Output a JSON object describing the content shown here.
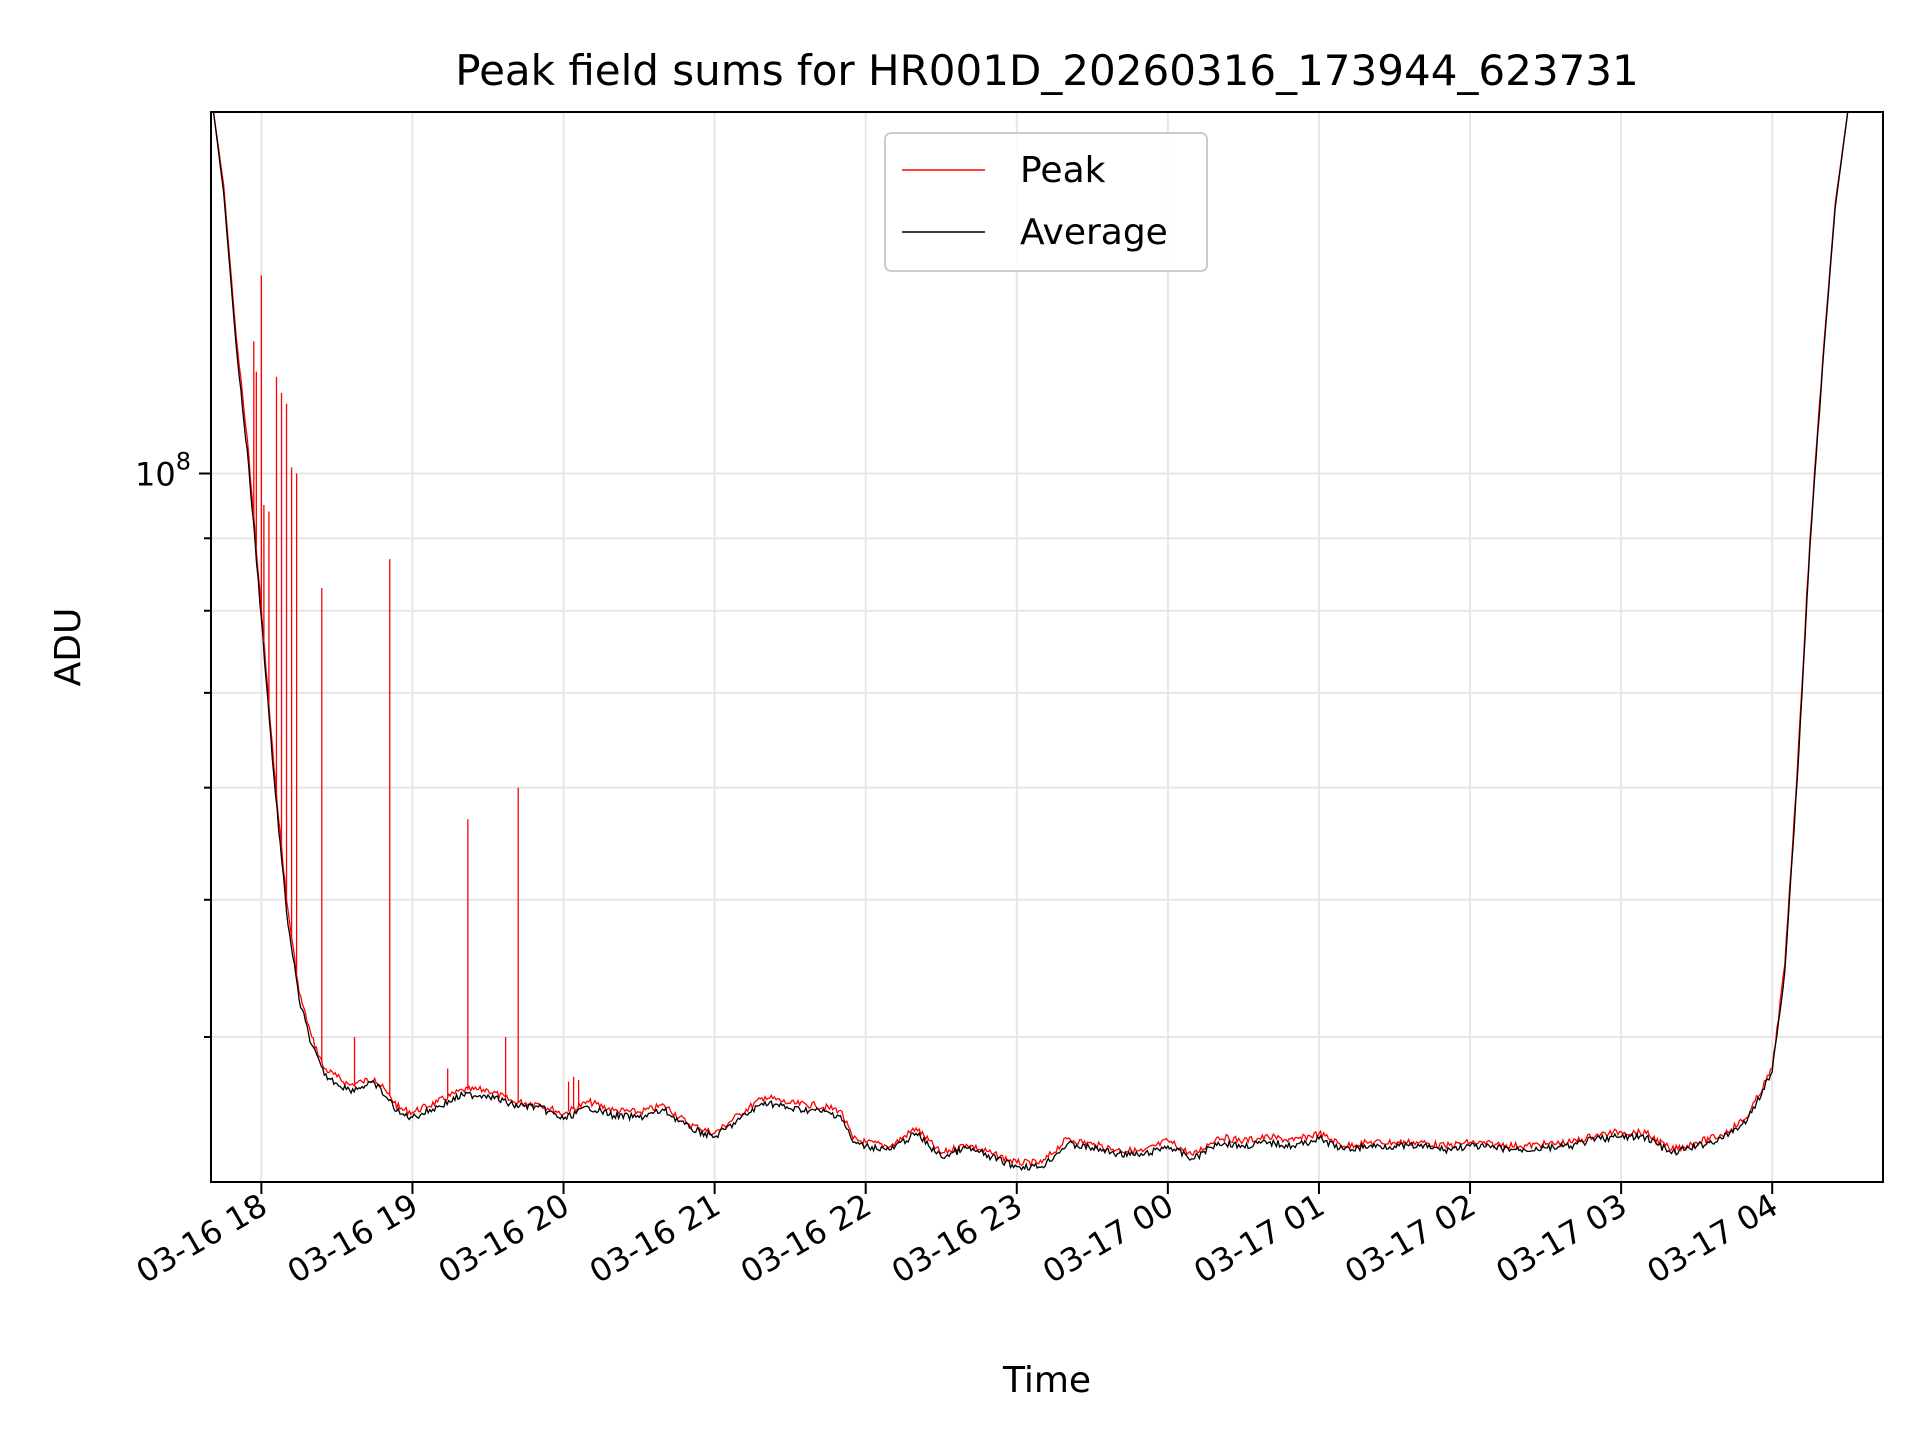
{
  "chart_data": {
    "type": "line",
    "title": "Peak field sums for HR001D_20260316_173944_623731",
    "xlabel": "Time",
    "ylabel": "ADU",
    "yscale": "log",
    "grid": true,
    "legend_position": "top-center",
    "x_tick_labels": [
      "03-16 18",
      "03-16 19",
      "03-16 20",
      "03-16 21",
      "03-16 22",
      "03-16 23",
      "03-17 00",
      "03-17 01",
      "03-17 02",
      "03-17 03",
      "03-17 04"
    ],
    "y_tick_labels": [
      {
        "base": "10",
        "exp": "8"
      }
    ],
    "xlim": [
      "2026-03-16 17:40",
      "2026-03-17 04:44"
    ],
    "ylim": [
      31600000,
      180000000
    ],
    "series": [
      {
        "name": "Peak",
        "color": "#ff0000",
        "x": [
          "2026-03-16 17:41",
          "2026-03-16 17:45",
          "2026-03-16 17:50",
          "2026-03-16 17:55",
          "2026-03-16 18:00",
          "2026-03-16 18:05",
          "2026-03-16 18:10",
          "2026-03-16 18:15",
          "2026-03-16 18:20",
          "2026-03-16 18:25",
          "2026-03-16 18:30",
          "2026-03-16 18:35",
          "2026-03-16 18:40",
          "2026-03-16 18:45",
          "2026-03-16 18:50",
          "2026-03-16 18:55",
          "2026-03-16 19:00",
          "2026-03-16 19:10",
          "2026-03-16 19:20",
          "2026-03-16 19:30",
          "2026-03-16 19:40",
          "2026-03-16 19:50",
          "2026-03-16 20:00",
          "2026-03-16 20:10",
          "2026-03-16 20:20",
          "2026-03-16 20:30",
          "2026-03-16 20:40",
          "2026-03-16 20:50",
          "2026-03-16 21:00",
          "2026-03-16 21:10",
          "2026-03-16 21:20",
          "2026-03-16 21:30",
          "2026-03-16 21:40",
          "2026-03-16 21:50",
          "2026-03-16 21:55",
          "2026-03-16 22:00",
          "2026-03-16 22:10",
          "2026-03-16 22:20",
          "2026-03-16 22:30",
          "2026-03-16 22:40",
          "2026-03-16 22:50",
          "2026-03-16 23:00",
          "2026-03-16 23:10",
          "2026-03-16 23:20",
          "2026-03-16 23:30",
          "2026-03-16 23:40",
          "2026-03-16 23:50",
          "2026-03-17 00:00",
          "2026-03-17 00:10",
          "2026-03-17 00:20",
          "2026-03-17 00:30",
          "2026-03-17 00:40",
          "2026-03-17 00:50",
          "2026-03-17 01:00",
          "2026-03-17 01:10",
          "2026-03-17 01:20",
          "2026-03-17 01:30",
          "2026-03-17 01:40",
          "2026-03-17 01:50",
          "2026-03-17 02:00",
          "2026-03-17 02:10",
          "2026-03-17 02:20",
          "2026-03-17 02:30",
          "2026-03-17 02:40",
          "2026-03-17 02:50",
          "2026-03-17 03:00",
          "2026-03-17 03:10",
          "2026-03-17 03:20",
          "2026-03-17 03:30",
          "2026-03-17 03:40",
          "2026-03-17 03:50",
          "2026-03-17 04:00",
          "2026-03-17 04:05",
          "2026-03-17 04:10",
          "2026-03-17 04:15",
          "2026-03-17 04:20",
          "2026-03-17 04:25",
          "2026-03-17 04:30",
          "2026-03-17 04:35",
          "2026-03-17 04:40"
        ],
        "y": [
          180000000,
          160000000,
          125000000,
          103000000,
          80000000,
          62000000,
          50000000,
          43000000,
          40000000,
          38000000,
          37500000,
          37000000,
          37200000,
          37400000,
          36500000,
          35600000,
          35400000,
          36000000,
          36700000,
          36700000,
          36000000,
          35900000,
          35300000,
          36000000,
          35500000,
          35400000,
          35800000,
          34700000,
          34200000,
          35300000,
          36300000,
          35900000,
          35800000,
          35500000,
          33900000,
          33700000,
          33500000,
          34500000,
          33100000,
          33600000,
          33100000,
          32600000,
          32600000,
          33900000,
          33600000,
          33300000,
          33200000,
          33800000,
          33000000,
          34000000,
          33800000,
          34000000,
          33800000,
          34200000,
          33500000,
          33700000,
          33700000,
          33700000,
          33500000,
          33700000,
          33600000,
          33500000,
          33600000,
          33700000,
          34100000,
          34300000,
          34200000,
          33300000,
          33700000,
          34100000,
          35100000,
          38000000,
          45000000,
          62000000,
          90000000,
          120000000,
          155000000,
          180000000,
          180000000,
          180000000
        ]
      },
      {
        "name": "Average",
        "color": "#000000",
        "x": [
          "2026-03-16 17:41",
          "2026-03-16 17:45",
          "2026-03-16 17:50",
          "2026-03-16 17:55",
          "2026-03-16 18:00",
          "2026-03-16 18:05",
          "2026-03-16 18:10",
          "2026-03-16 18:15",
          "2026-03-16 18:20",
          "2026-03-16 18:25",
          "2026-03-16 18:30",
          "2026-03-16 18:35",
          "2026-03-16 18:40",
          "2026-03-16 18:45",
          "2026-03-16 18:50",
          "2026-03-16 18:55",
          "2026-03-16 19:00",
          "2026-03-16 19:10",
          "2026-03-16 19:20",
          "2026-03-16 19:30",
          "2026-03-16 19:40",
          "2026-03-16 19:50",
          "2026-03-16 20:00",
          "2026-03-16 20:10",
          "2026-03-16 20:20",
          "2026-03-16 20:30",
          "2026-03-16 20:40",
          "2026-03-16 20:50",
          "2026-03-16 21:00",
          "2026-03-16 21:10",
          "2026-03-16 21:20",
          "2026-03-16 21:30",
          "2026-03-16 21:40",
          "2026-03-16 21:50",
          "2026-03-16 21:55",
          "2026-03-16 22:00",
          "2026-03-16 22:10",
          "2026-03-16 22:20",
          "2026-03-16 22:30",
          "2026-03-16 22:40",
          "2026-03-16 22:50",
          "2026-03-16 23:00",
          "2026-03-16 23:10",
          "2026-03-16 23:20",
          "2026-03-16 23:30",
          "2026-03-16 23:40",
          "2026-03-16 23:50",
          "2026-03-17 00:00",
          "2026-03-17 00:10",
          "2026-03-17 00:20",
          "2026-03-17 00:30",
          "2026-03-17 00:40",
          "2026-03-17 00:50",
          "2026-03-17 01:00",
          "2026-03-17 01:10",
          "2026-03-17 01:20",
          "2026-03-17 01:30",
          "2026-03-17 01:40",
          "2026-03-17 01:50",
          "2026-03-17 02:00",
          "2026-03-17 02:10",
          "2026-03-17 02:20",
          "2026-03-17 02:30",
          "2026-03-17 02:40",
          "2026-03-17 02:50",
          "2026-03-17 03:00",
          "2026-03-17 03:10",
          "2026-03-17 03:20",
          "2026-03-17 03:30",
          "2026-03-17 03:40",
          "2026-03-17 03:50",
          "2026-03-17 04:00",
          "2026-03-17 04:05",
          "2026-03-17 04:10",
          "2026-03-17 04:15",
          "2026-03-17 04:20",
          "2026-03-17 04:25",
          "2026-03-17 04:30",
          "2026-03-17 04:35",
          "2026-03-17 04:40"
        ],
        "y": [
          180000000,
          158000000,
          123000000,
          101000000,
          79000000,
          61000000,
          49000000,
          42500000,
          39500000,
          37600000,
          37100000,
          36700000,
          36900000,
          37100000,
          36200000,
          35300000,
          35100000,
          35700000,
          36400000,
          36400000,
          35800000,
          35700000,
          35000000,
          35700000,
          35200000,
          35100000,
          35500000,
          34500000,
          34000000,
          35000000,
          36000000,
          35600000,
          35500000,
          35200000,
          33700000,
          33500000,
          33300000,
          34200000,
          32900000,
          33400000,
          32900000,
          32400000,
          32400000,
          33600000,
          33400000,
          33100000,
          33000000,
          33500000,
          32800000,
          33700000,
          33500000,
          33700000,
          33500000,
          33900000,
          33300000,
          33500000,
          33500000,
          33500000,
          33300000,
          33500000,
          33400000,
          33300000,
          33400000,
          33500000,
          33900000,
          34000000,
          34000000,
          33100000,
          33500000,
          33900000,
          34900000,
          37800000,
          44500000,
          61000000,
          89000000,
          119000000,
          154000000,
          180000000,
          180000000,
          180000000
        ]
      }
    ],
    "spikes": {
      "series": "Peak",
      "x": [
        "2026-03-16 17:57",
        "2026-03-16 17:58",
        "2026-03-16 18:00",
        "2026-03-16 18:01",
        "2026-03-16 18:03",
        "2026-03-16 18:06",
        "2026-03-16 18:08",
        "2026-03-16 18:10",
        "2026-03-16 18:12",
        "2026-03-16 18:14",
        "2026-03-16 18:24",
        "2026-03-16 18:37",
        "2026-03-16 18:51",
        "2026-03-16 19:14",
        "2026-03-16 19:22",
        "2026-03-16 19:37",
        "2026-03-16 19:42",
        "2026-03-16 20:02",
        "2026-03-16 20:04",
        "2026-03-16 20:06"
      ],
      "y": [
        124000000,
        118000000,
        138000000,
        95000000,
        94000000,
        117000000,
        114000000,
        112000000,
        101000000,
        100000000,
        83000000,
        40000000,
        87000000,
        38000000,
        57000000,
        40000000,
        60000000,
        37200000,
        37500000,
        37300000
      ]
    }
  }
}
